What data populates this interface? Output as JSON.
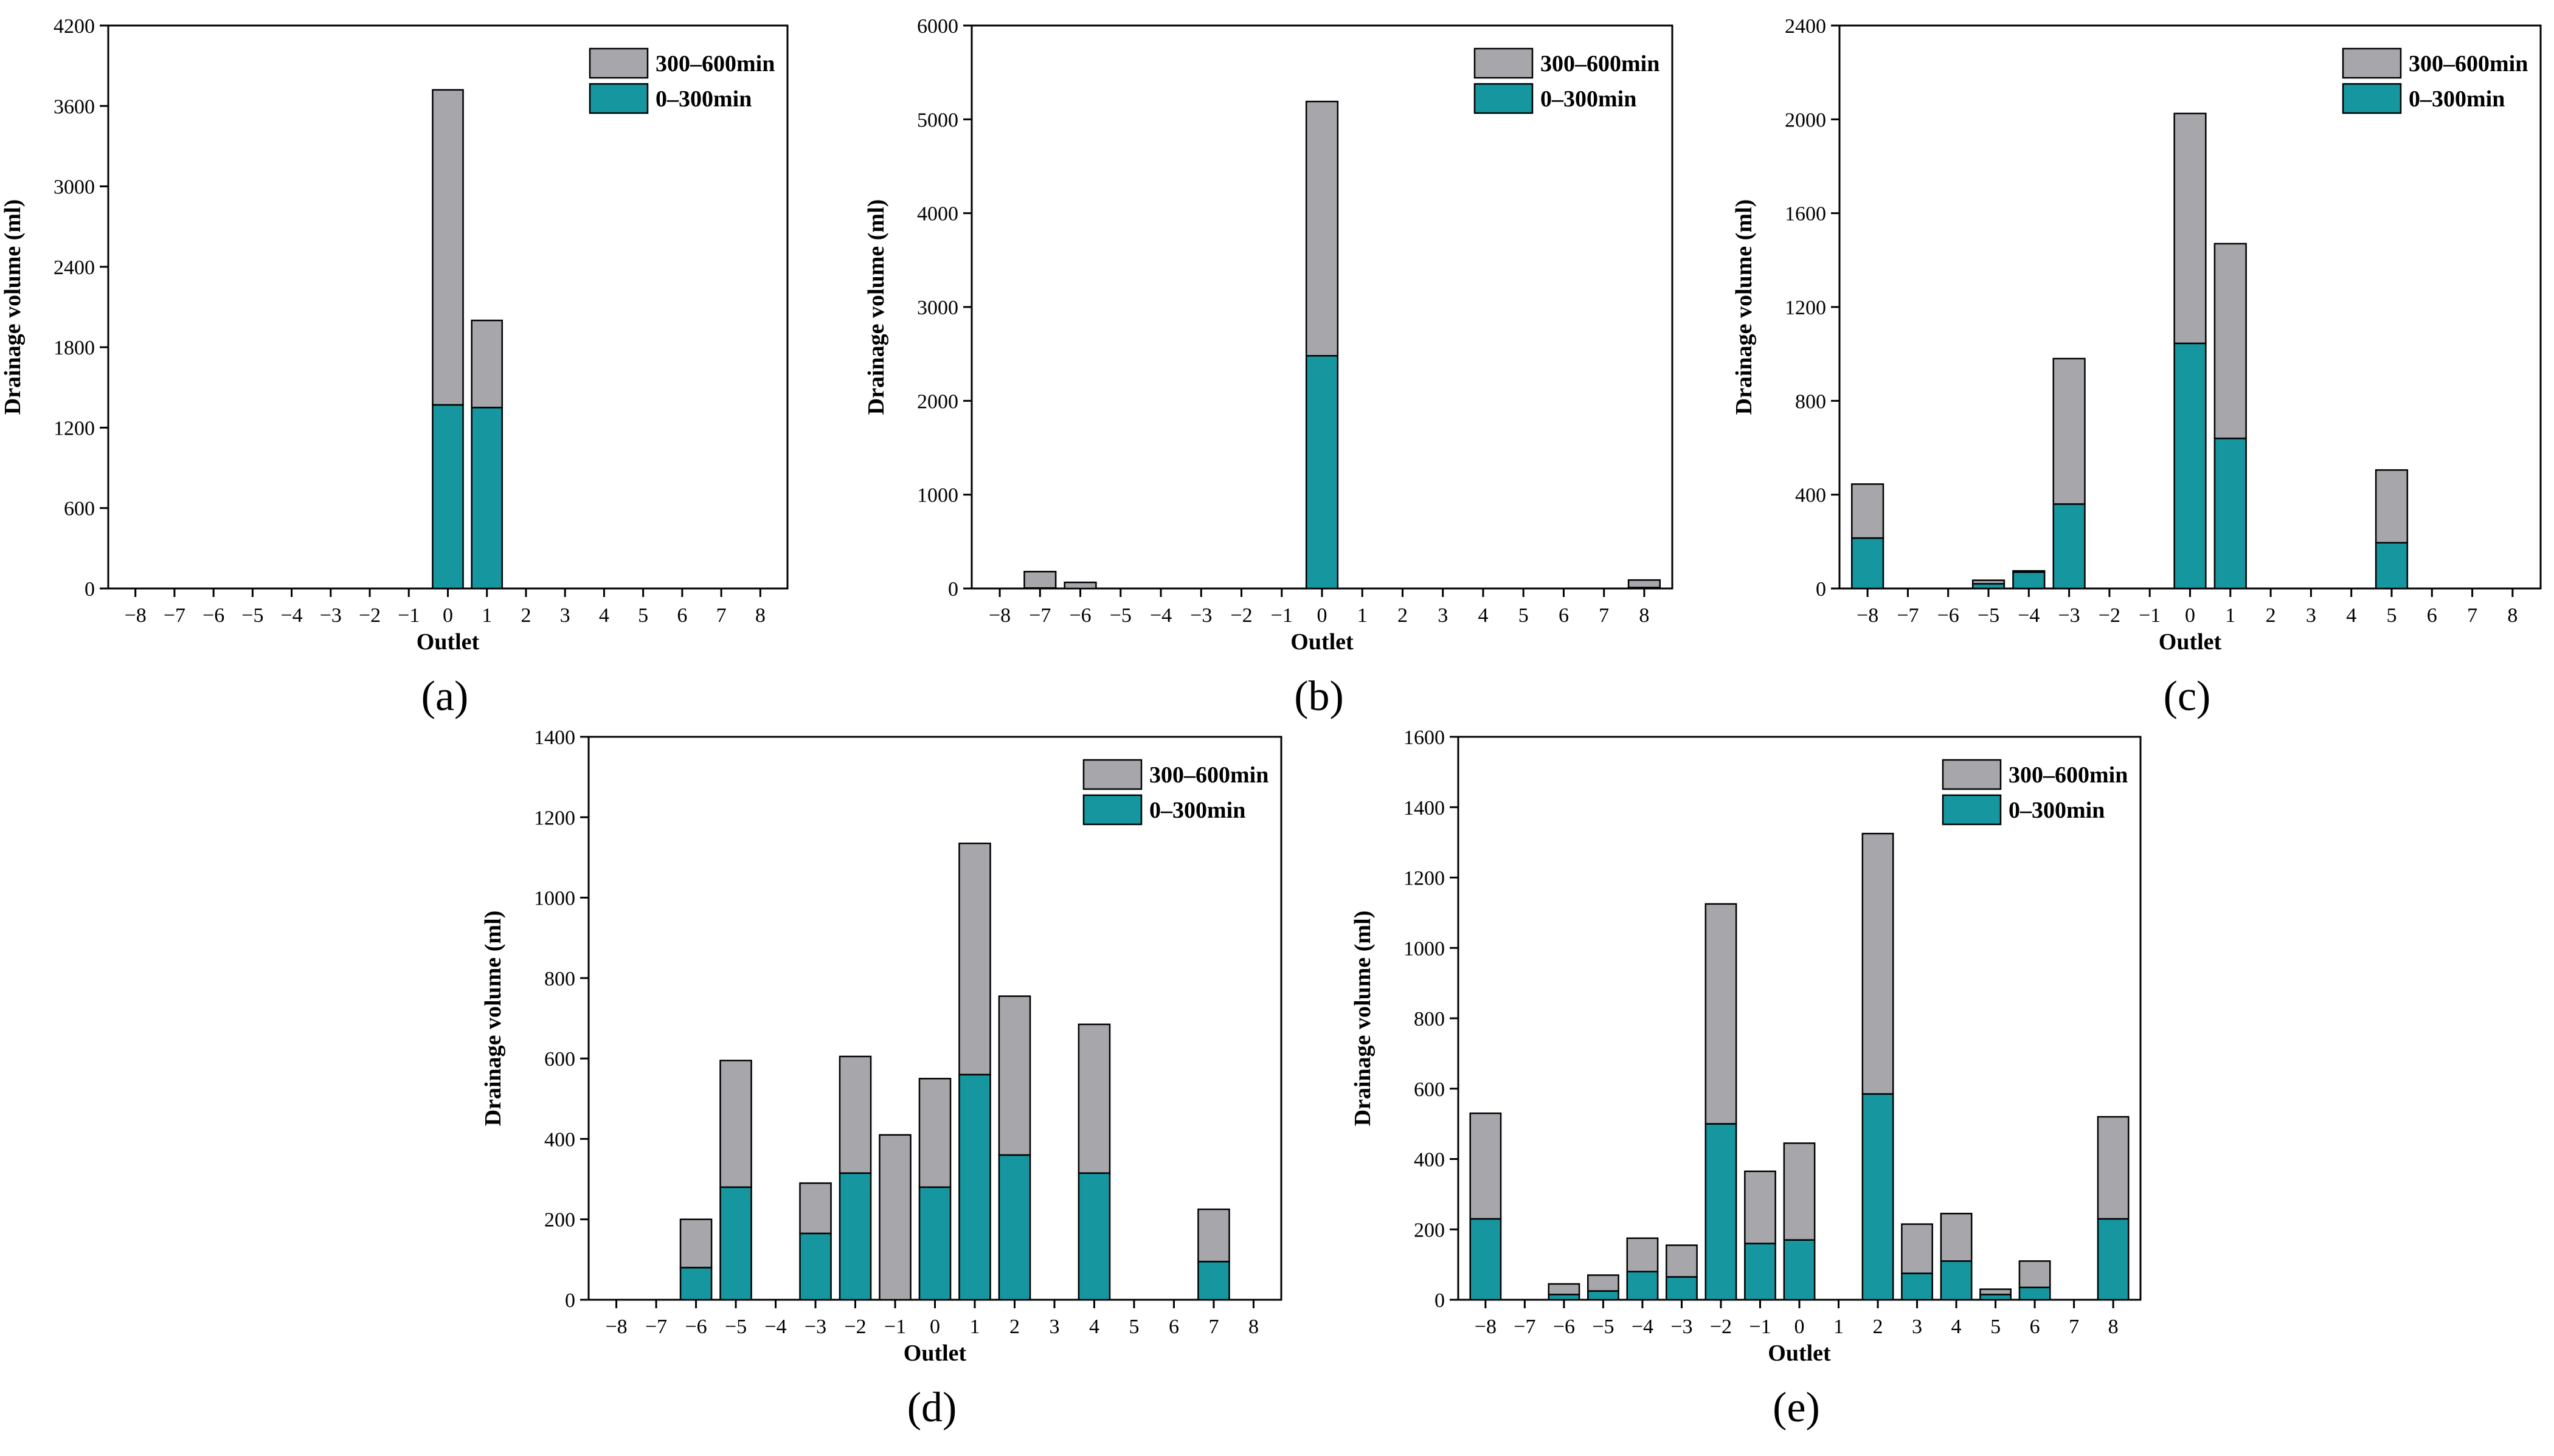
{
  "colors": {
    "late": "#a7a7ab",
    "early": "#16969f"
  },
  "legend": {
    "late": "300–600min",
    "early": "0–300min"
  },
  "chart_data": [
    {
      "type": "bar",
      "stacked": true,
      "panel": "(a)",
      "xlabel": "Outlet",
      "ylabel": "Drainage volume (ml)",
      "ylim": [
        0,
        4200
      ],
      "yticks": [
        0,
        600,
        1200,
        1800,
        2400,
        3000,
        3600,
        4200
      ],
      "categories": [
        "−8",
        "−7",
        "−6",
        "−5",
        "−4",
        "−3",
        "−2",
        "−1",
        "0",
        "1",
        "2",
        "3",
        "4",
        "5",
        "6",
        "7",
        "8"
      ],
      "series": [
        {
          "name": "0–300min",
          "values": [
            0,
            0,
            0,
            0,
            0,
            0,
            0,
            0,
            1370,
            1350,
            0,
            0,
            0,
            0,
            0,
            0,
            0
          ]
        },
        {
          "name": "300–600min",
          "values": [
            0,
            0,
            0,
            0,
            0,
            0,
            0,
            0,
            2350,
            650,
            0,
            0,
            0,
            0,
            0,
            0,
            0
          ]
        }
      ]
    },
    {
      "type": "bar",
      "stacked": true,
      "panel": "(b)",
      "xlabel": "Outlet",
      "ylabel": "Drainage volume (ml)",
      "ylim": [
        0,
        6000
      ],
      "yticks": [
        0,
        1000,
        2000,
        3000,
        4000,
        5000,
        6000
      ],
      "categories": [
        "−8",
        "−7",
        "−6",
        "−5",
        "−4",
        "−3",
        "−2",
        "−1",
        "0",
        "1",
        "2",
        "3",
        "4",
        "5",
        "6",
        "7",
        "8"
      ],
      "series": [
        {
          "name": "0–300min",
          "values": [
            0,
            5,
            0,
            0,
            0,
            0,
            0,
            0,
            2480,
            0,
            0,
            0,
            0,
            0,
            0,
            0,
            10
          ]
        },
        {
          "name": "300–600min",
          "values": [
            0,
            175,
            65,
            0,
            0,
            0,
            0,
            0,
            2710,
            0,
            0,
            0,
            0,
            0,
            0,
            0,
            80
          ]
        }
      ]
    },
    {
      "type": "bar",
      "stacked": true,
      "panel": "(c)",
      "xlabel": "Outlet",
      "ylabel": "Drainage volume (ml)",
      "ylim": [
        0,
        2400
      ],
      "yticks": [
        0,
        400,
        800,
        1200,
        1600,
        2000,
        2400
      ],
      "categories": [
        "−8",
        "−7",
        "−6",
        "−5",
        "−4",
        "−3",
        "−2",
        "−1",
        "0",
        "1",
        "2",
        "3",
        "4",
        "5",
        "6",
        "7",
        "8"
      ],
      "series": [
        {
          "name": "0–300min",
          "values": [
            215,
            0,
            0,
            20,
            70,
            360,
            0,
            0,
            1045,
            640,
            0,
            0,
            0,
            195,
            0,
            0,
            0
          ]
        },
        {
          "name": "300–600min",
          "values": [
            230,
            0,
            0,
            15,
            5,
            620,
            0,
            0,
            980,
            830,
            0,
            0,
            0,
            310,
            0,
            0,
            0
          ]
        }
      ]
    },
    {
      "type": "bar",
      "stacked": true,
      "panel": "(d)",
      "xlabel": "Outlet",
      "ylabel": "Drainage volume (ml)",
      "ylim": [
        0,
        1400
      ],
      "yticks": [
        0,
        200,
        400,
        600,
        800,
        1000,
        1200,
        1400
      ],
      "categories": [
        "−8",
        "−7",
        "−6",
        "−5",
        "−4",
        "−3",
        "−2",
        "−1",
        "0",
        "1",
        "2",
        "3",
        "4",
        "5",
        "6",
        "7",
        "8"
      ],
      "series": [
        {
          "name": "0–300min",
          "values": [
            0,
            0,
            80,
            280,
            0,
            165,
            315,
            0,
            280,
            560,
            360,
            0,
            315,
            0,
            0,
            95,
            0
          ]
        },
        {
          "name": "300–600min",
          "values": [
            0,
            0,
            120,
            315,
            0,
            125,
            290,
            410,
            270,
            575,
            395,
            0,
            370,
            0,
            0,
            130,
            0
          ]
        }
      ]
    },
    {
      "type": "bar",
      "stacked": true,
      "panel": "(e)",
      "xlabel": "Outlet",
      "ylabel": "Drainage volume (ml)",
      "ylim": [
        0,
        1600
      ],
      "yticks": [
        0,
        200,
        400,
        600,
        800,
        1000,
        1200,
        1400,
        1600
      ],
      "categories": [
        "−8",
        "−7",
        "−6",
        "−5",
        "−4",
        "−3",
        "−2",
        "−1",
        "0",
        "1",
        "2",
        "3",
        "4",
        "5",
        "6",
        "7",
        "8"
      ],
      "series": [
        {
          "name": "0–300min",
          "values": [
            230,
            0,
            15,
            25,
            80,
            65,
            500,
            160,
            170,
            0,
            585,
            75,
            110,
            15,
            35,
            0,
            230
          ]
        },
        {
          "name": "300–600min",
          "values": [
            300,
            0,
            30,
            45,
            95,
            90,
            625,
            205,
            275,
            0,
            740,
            140,
            135,
            15,
            75,
            0,
            290
          ]
        }
      ]
    }
  ]
}
